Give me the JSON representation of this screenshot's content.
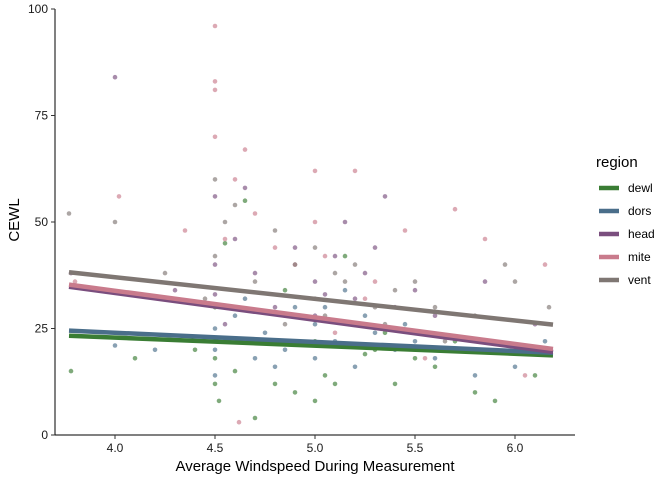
{
  "chart_data": {
    "type": "scatter",
    "xlabel": "Average Windspeed During Measurement",
    "ylabel": "CEWL",
    "xlim": [
      3.7,
      6.3
    ],
    "ylim": [
      0,
      100
    ],
    "x_ticks": [
      4.0,
      4.5,
      5.0,
      5.5,
      6.0
    ],
    "x_tick_labels": [
      "4.0",
      "4.5",
      "5.0",
      "5.5",
      "6.0"
    ],
    "y_ticks": [
      0,
      25,
      50,
      75,
      100
    ],
    "y_tick_labels": [
      "0",
      "25",
      "50",
      "75",
      "100"
    ],
    "grid": false,
    "legend": {
      "title": "region",
      "position": "right"
    },
    "series": [
      {
        "name": "dewl",
        "color": "#3a7d34",
        "fit": {
          "x": [
            3.77,
            6.19
          ],
          "y": [
            23.3,
            18.7
          ]
        },
        "points": [
          [
            4.5,
            30
          ],
          [
            4.5,
            12
          ],
          [
            4.5,
            18
          ],
          [
            4.52,
            8
          ],
          [
            4.6,
            15
          ],
          [
            4.7,
            4
          ],
          [
            4.8,
            12
          ],
          [
            4.9,
            10
          ],
          [
            5.0,
            8
          ],
          [
            5.0,
            22
          ],
          [
            5.05,
            14
          ],
          [
            5.1,
            12
          ],
          [
            5.2,
            26
          ],
          [
            5.3,
            20
          ],
          [
            5.4,
            12
          ],
          [
            5.5,
            18
          ],
          [
            5.6,
            16
          ],
          [
            5.8,
            10
          ],
          [
            5.9,
            8
          ],
          [
            6.1,
            14
          ],
          [
            3.78,
            15
          ],
          [
            4.1,
            18
          ],
          [
            4.4,
            20
          ],
          [
            4.55,
            45
          ],
          [
            4.65,
            55
          ],
          [
            4.85,
            34
          ],
          [
            5.15,
            42
          ],
          [
            5.25,
            19
          ],
          [
            5.35,
            24
          ],
          [
            5.7,
            22
          ]
        ]
      },
      {
        "name": "dors",
        "color": "#4a6e8a",
        "fit": {
          "x": [
            3.77,
            6.19
          ],
          "y": [
            24.5,
            19.3
          ]
        },
        "points": [
          [
            4.5,
            20
          ],
          [
            4.5,
            25
          ],
          [
            4.5,
            14
          ],
          [
            4.55,
            22
          ],
          [
            4.6,
            28
          ],
          [
            4.7,
            18
          ],
          [
            4.75,
            24
          ],
          [
            4.85,
            20
          ],
          [
            4.9,
            30
          ],
          [
            5.0,
            26
          ],
          [
            5.0,
            18
          ],
          [
            5.1,
            22
          ],
          [
            5.15,
            34
          ],
          [
            5.2,
            16
          ],
          [
            5.3,
            24
          ],
          [
            5.4,
            20
          ],
          [
            5.5,
            22
          ],
          [
            5.6,
            18
          ],
          [
            5.8,
            14
          ],
          [
            6.0,
            16
          ],
          [
            6.15,
            22
          ],
          [
            4.0,
            21
          ],
          [
            4.2,
            20
          ],
          [
            4.8,
            16
          ],
          [
            5.25,
            28
          ],
          [
            5.45,
            26
          ],
          [
            5.05,
            30
          ],
          [
            4.65,
            32
          ]
        ]
      },
      {
        "name": "head",
        "color": "#7a4e7e",
        "fit": {
          "x": [
            3.77,
            6.19
          ],
          "y": [
            34.8,
            19.5
          ]
        },
        "points": [
          [
            4.0,
            84
          ],
          [
            4.5,
            40
          ],
          [
            4.5,
            56
          ],
          [
            4.5,
            33
          ],
          [
            4.55,
            26
          ],
          [
            4.6,
            46
          ],
          [
            4.7,
            38
          ],
          [
            4.8,
            30
          ],
          [
            4.9,
            44
          ],
          [
            5.0,
            36
          ],
          [
            5.0,
            28
          ],
          [
            5.1,
            42
          ],
          [
            5.15,
            50
          ],
          [
            5.2,
            32
          ],
          [
            5.25,
            38
          ],
          [
            5.3,
            44
          ],
          [
            5.4,
            30
          ],
          [
            5.5,
            34
          ],
          [
            5.6,
            28
          ],
          [
            5.85,
            36
          ],
          [
            6.1,
            26
          ],
          [
            3.78,
            38
          ],
          [
            4.3,
            34
          ],
          [
            5.35,
            56
          ],
          [
            4.65,
            58
          ],
          [
            5.05,
            33
          ]
        ]
      },
      {
        "name": "mite",
        "color": "#c97b8c",
        "fit": {
          "x": [
            3.77,
            6.19
          ],
          "y": [
            35.3,
            20.2
          ]
        },
        "points": [
          [
            4.5,
            96
          ],
          [
            4.5,
            83
          ],
          [
            4.5,
            81
          ],
          [
            4.5,
            70
          ],
          [
            4.55,
            46
          ],
          [
            4.6,
            60
          ],
          [
            4.62,
            3
          ],
          [
            4.65,
            67
          ],
          [
            4.7,
            52
          ],
          [
            4.8,
            44
          ],
          [
            4.9,
            40
          ],
          [
            5.0,
            50
          ],
          [
            5.0,
            62
          ],
          [
            5.05,
            42
          ],
          [
            5.1,
            24
          ],
          [
            5.2,
            62
          ],
          [
            5.3,
            36
          ],
          [
            5.45,
            48
          ],
          [
            5.7,
            53
          ],
          [
            5.85,
            46
          ],
          [
            6.15,
            40
          ],
          [
            4.02,
            56
          ],
          [
            3.8,
            36
          ],
          [
            4.35,
            48
          ],
          [
            5.25,
            32
          ],
          [
            5.55,
            18
          ],
          [
            6.05,
            14
          ],
          [
            4.85,
            28
          ]
        ]
      },
      {
        "name": "vent",
        "color": "#7f7773",
        "fit": {
          "x": [
            3.77,
            6.19
          ],
          "y": [
            38.2,
            25.9
          ]
        },
        "points": [
          [
            3.77,
            52
          ],
          [
            4.0,
            50
          ],
          [
            4.5,
            60
          ],
          [
            4.5,
            42
          ],
          [
            4.55,
            50
          ],
          [
            4.6,
            54
          ],
          [
            4.7,
            36
          ],
          [
            4.8,
            48
          ],
          [
            4.9,
            40
          ],
          [
            5.0,
            32
          ],
          [
            5.0,
            44
          ],
          [
            5.1,
            38
          ],
          [
            5.15,
            36
          ],
          [
            5.2,
            40
          ],
          [
            5.3,
            30
          ],
          [
            5.4,
            34
          ],
          [
            5.5,
            36
          ],
          [
            5.6,
            30
          ],
          [
            5.8,
            28
          ],
          [
            6.0,
            36
          ],
          [
            6.17,
            30
          ],
          [
            4.25,
            38
          ],
          [
            4.45,
            32
          ],
          [
            4.85,
            26
          ],
          [
            5.05,
            28
          ],
          [
            5.35,
            26
          ],
          [
            5.65,
            22
          ],
          [
            5.95,
            40
          ]
        ]
      }
    ]
  }
}
